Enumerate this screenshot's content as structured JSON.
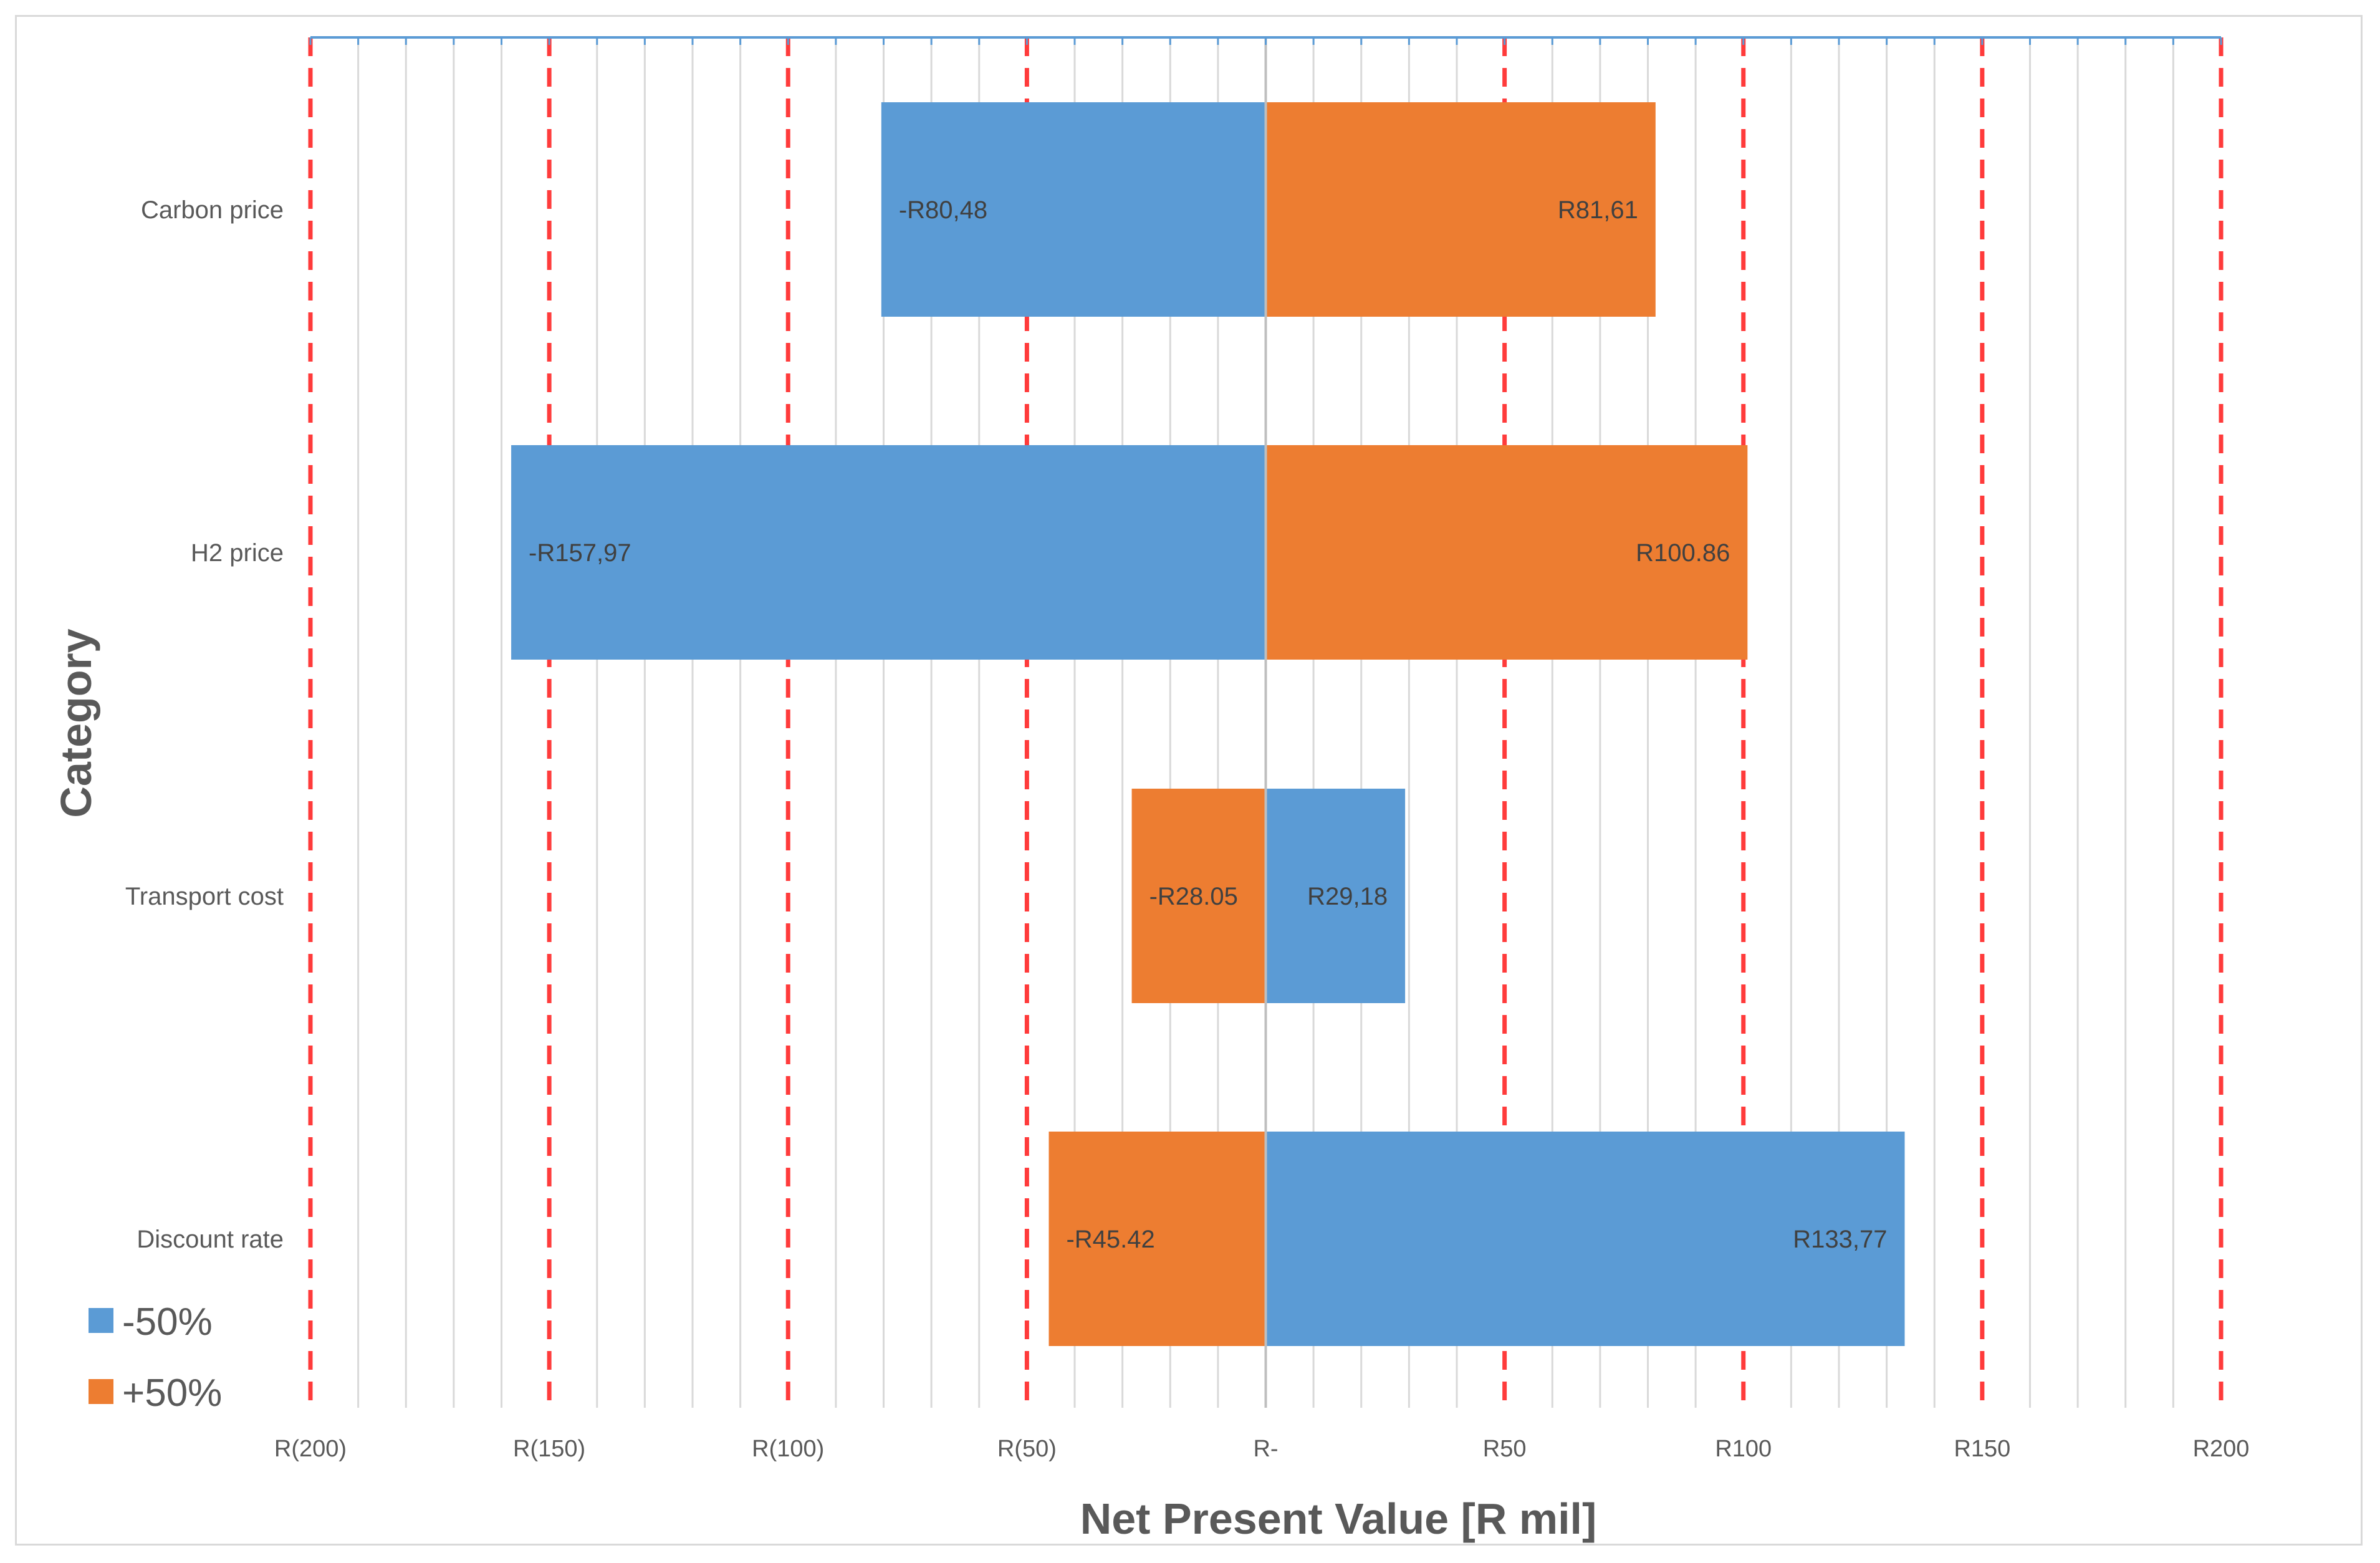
{
  "chart_data": {
    "type": "bar",
    "orientation": "horizontal",
    "title": "",
    "xlabel": "Net Present Value [R mil]",
    "ylabel": "Category",
    "xlim": [
      -200,
      200
    ],
    "x_ticks": [
      -200,
      -150,
      -100,
      -50,
      0,
      50,
      100,
      150,
      200
    ],
    "x_tick_labels": [
      "R(200)",
      "R(150)",
      "R(100)",
      "R(50)",
      "R-",
      "R50",
      "R100",
      "R150",
      "R200"
    ],
    "categories": [
      "Carbon price",
      "H2 price",
      "Transport cost",
      "Discount rate"
    ],
    "series": [
      {
        "name": "-50%",
        "color": "#5b9bd5",
        "values": [
          -80.48,
          -157.97,
          29.18,
          133.77
        ],
        "labels": [
          "-R80,48",
          "-R157,97",
          "R29,18",
          "R133,77"
        ]
      },
      {
        "name": "+50%",
        "color": "#ed7d31",
        "values": [
          81.61,
          100.86,
          -28.05,
          -45.42
        ],
        "labels": [
          "R81,61",
          "R100.86",
          "-R28.05",
          "-R45.42"
        ]
      }
    ],
    "gridlines": "vertical",
    "major_gridline_color": "#ff3b3b",
    "minor_gridline_color": "#d9d9d9",
    "legend_position": "bottom-left"
  }
}
